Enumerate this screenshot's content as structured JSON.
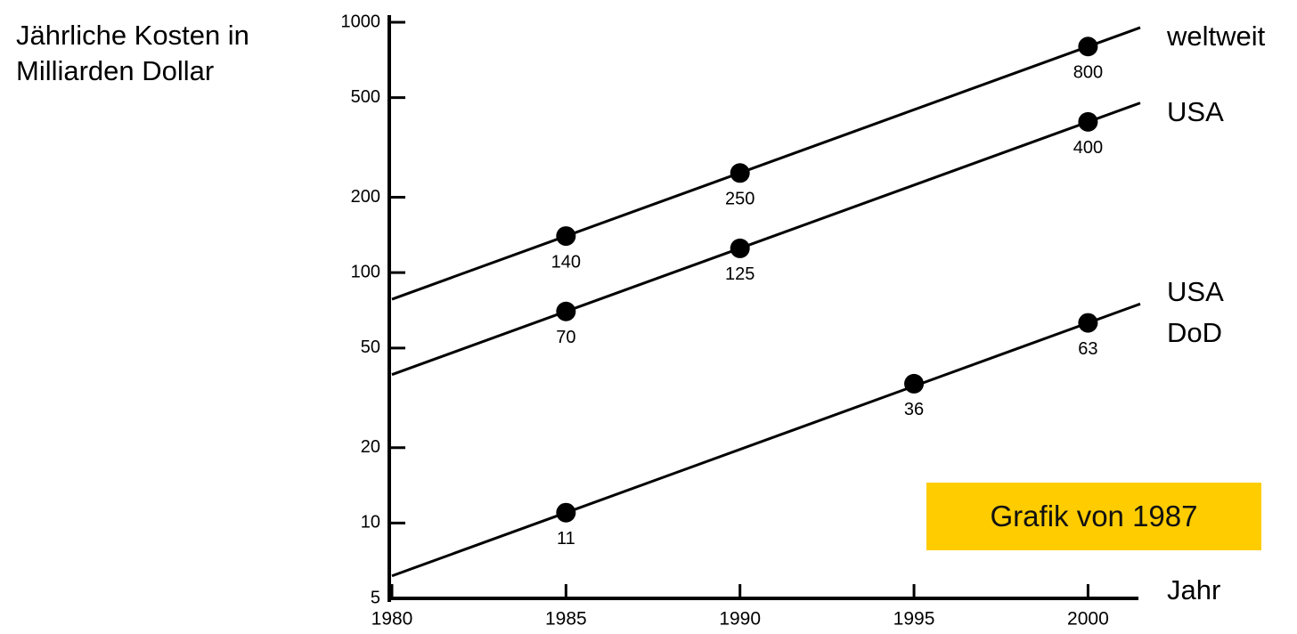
{
  "chart_data": {
    "type": "line",
    "y_label": "Jährliche Kosten in Milliarden Dollar",
    "x_label": "Jahr",
    "annotation": "Grafik von 1987",
    "log_y": true,
    "xlim": [
      1980,
      2001.5
    ],
    "xticks": [
      1980,
      1985,
      1990,
      1995,
      2000
    ],
    "ylim": [
      5,
      1000
    ],
    "yticks": [
      5,
      10,
      20,
      50,
      100,
      200,
      500,
      1000
    ],
    "series": [
      {
        "name": "weltweit",
        "color": "#000000",
        "x": [
          1985,
          1990,
          2000
        ],
        "values": [
          140,
          250,
          800
        ]
      },
      {
        "name": "USA",
        "color": "#000000",
        "x": [
          1985,
          1990,
          2000
        ],
        "values": [
          70,
          125,
          400
        ]
      },
      {
        "name": "USA DoD",
        "color": "#000000",
        "x": [
          1985,
          1995,
          2000
        ],
        "values": [
          11,
          36,
          63
        ]
      }
    ]
  }
}
